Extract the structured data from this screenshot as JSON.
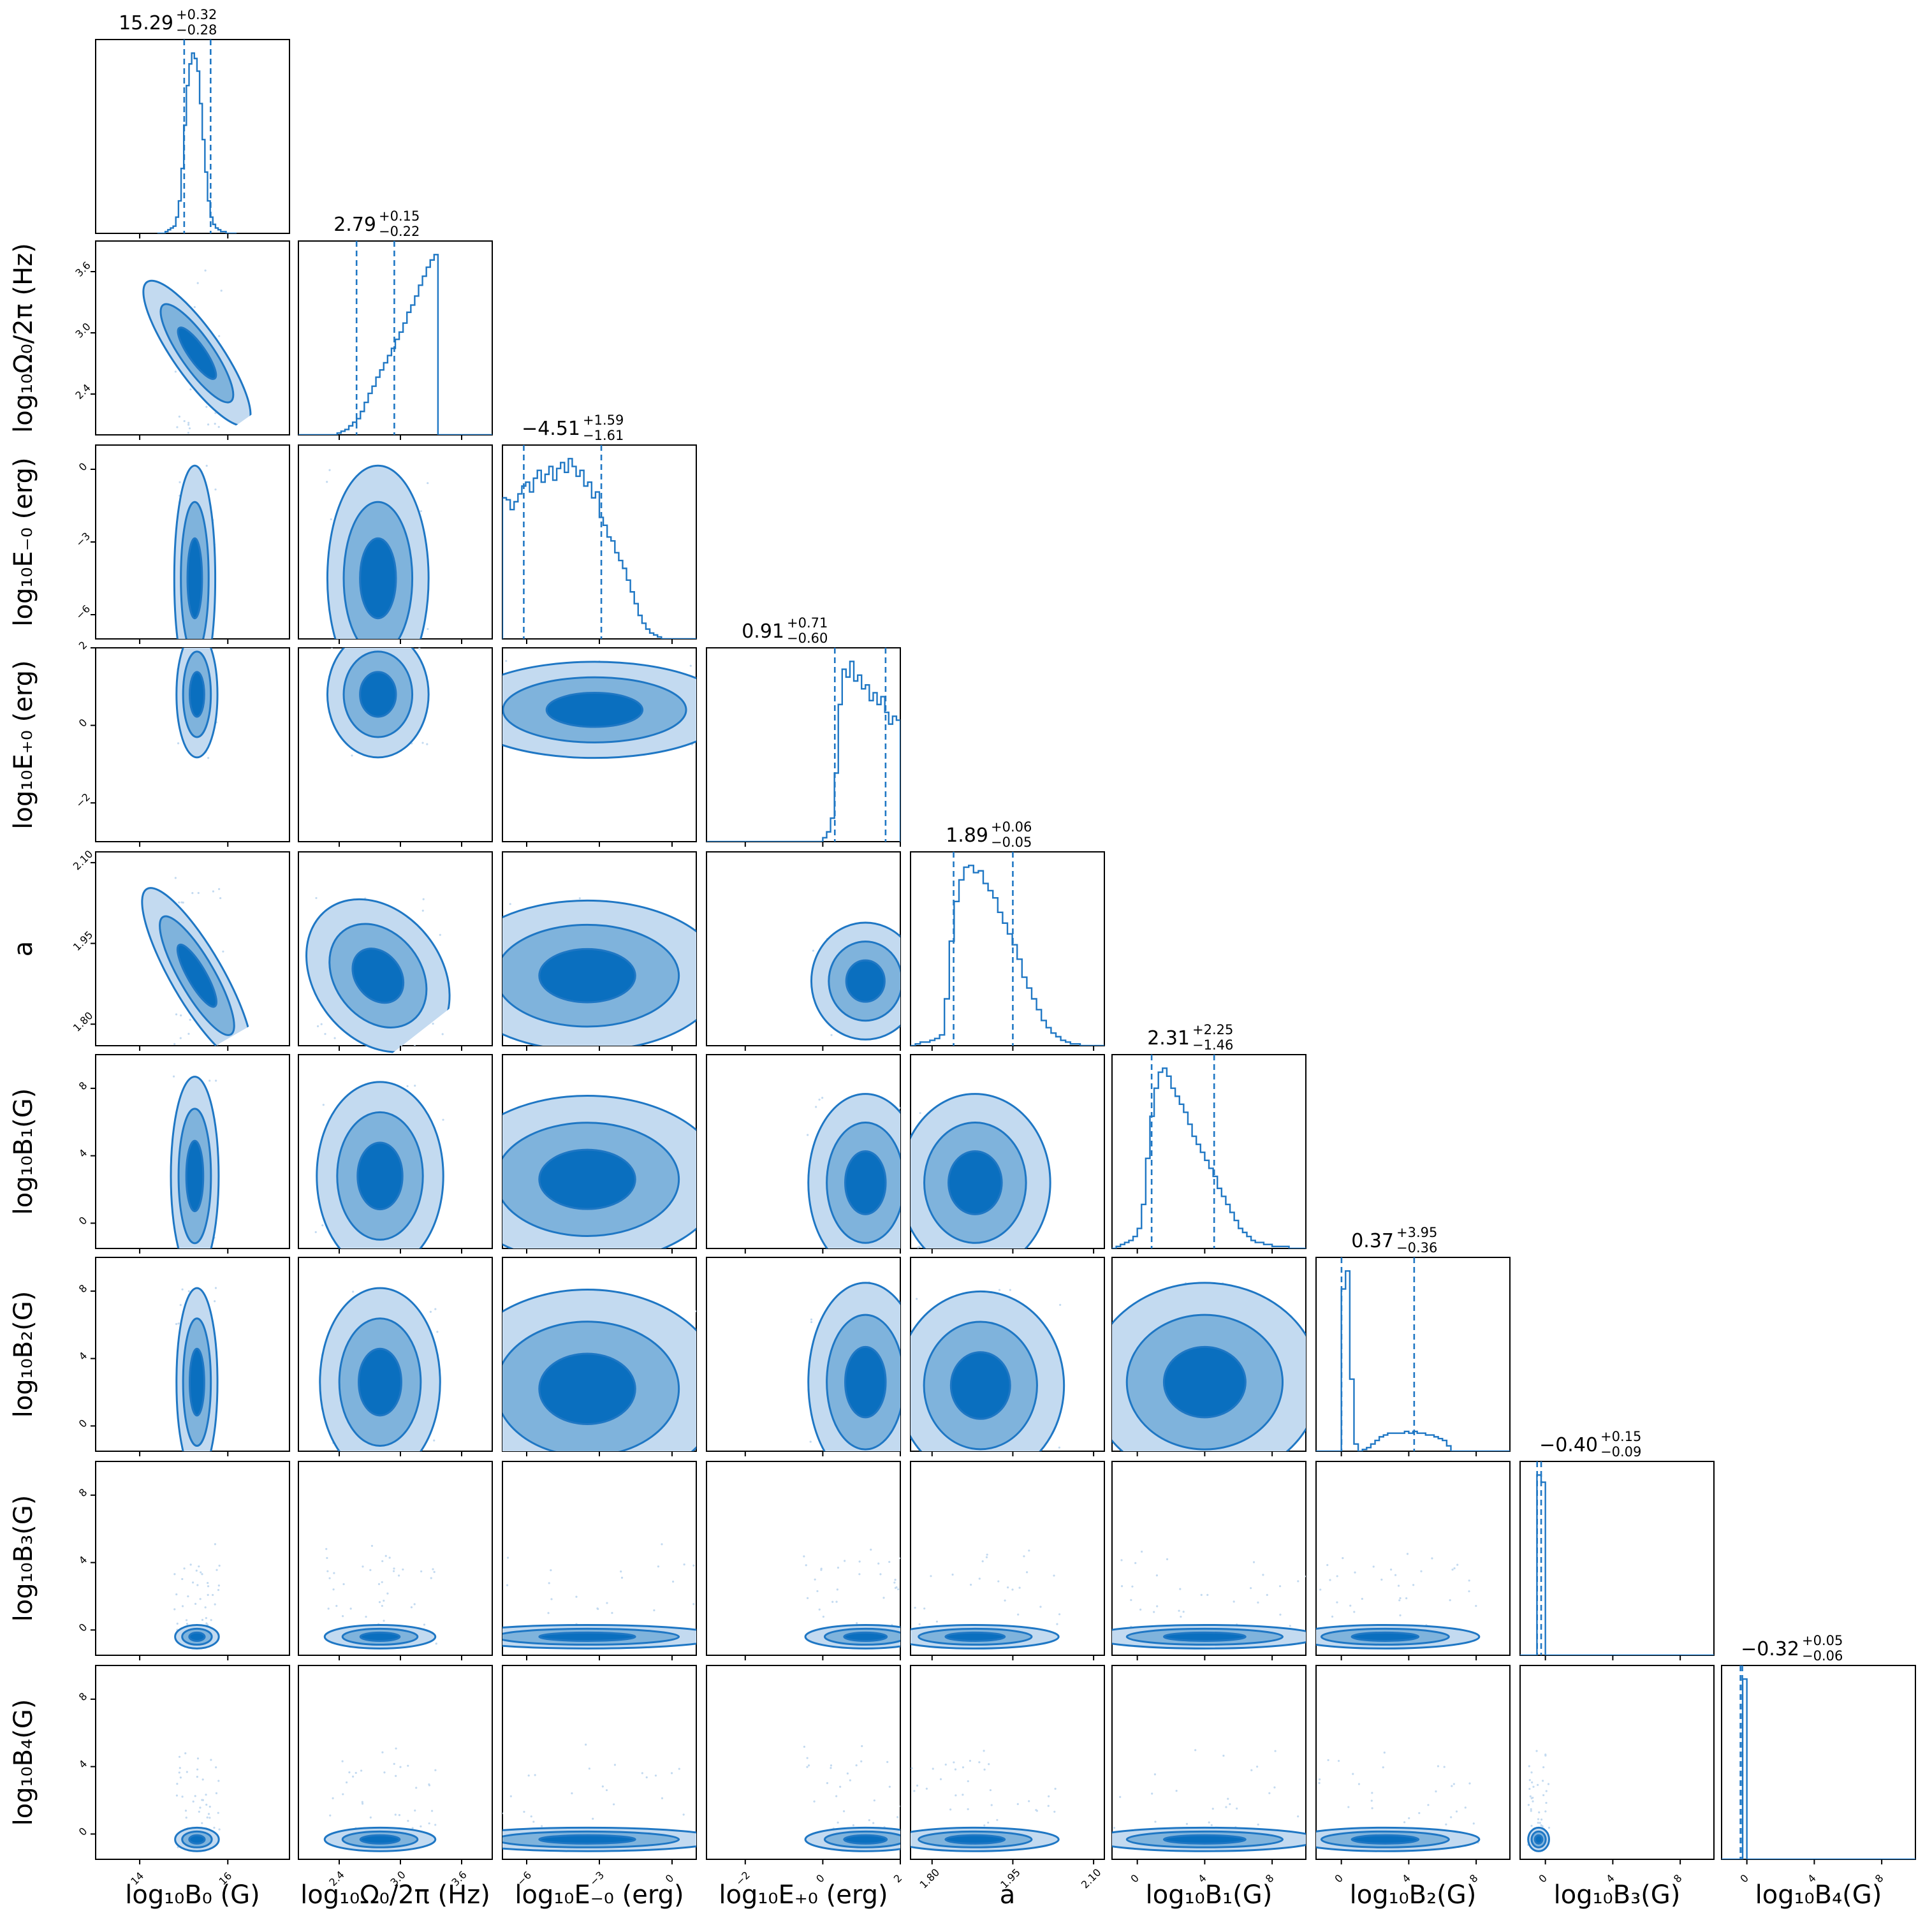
{
  "chart_data": {
    "type": "corner",
    "title": "",
    "parameters": [
      {
        "key": "B0",
        "ticks": [
          14,
          16
        ],
        "tick_labels": [
          "14",
          "16"
        ],
        "range": [
          13.0,
          17.4
        ]
      },
      {
        "key": "Omega0",
        "ticks": [
          2.4,
          3.0,
          3.6
        ],
        "tick_labels": [
          "2.4",
          "3.0",
          "3.6"
        ],
        "range": [
          2.0,
          3.9
        ]
      },
      {
        "key": "Em0",
        "ticks": [
          -6,
          -3,
          0
        ],
        "tick_labels": [
          "−6",
          "−3",
          "0"
        ],
        "range": [
          -7.0,
          1.0
        ]
      },
      {
        "key": "Ep0",
        "ticks": [
          -2,
          0,
          2
        ],
        "tick_labels": [
          "−2",
          "0",
          "2"
        ],
        "range": [
          -3.0,
          2.0
        ]
      },
      {
        "key": "a",
        "ticks": [
          1.8,
          1.95,
          2.1
        ],
        "tick_labels": [
          "1.80",
          "1.95",
          "2.10"
        ],
        "range": [
          1.76,
          2.12
        ]
      },
      {
        "key": "B1",
        "ticks": [
          0,
          4,
          8
        ],
        "tick_labels": [
          "0",
          "4",
          "8"
        ],
        "range": [
          -1.5,
          10.0
        ]
      },
      {
        "key": "B2",
        "ticks": [
          0,
          4,
          8
        ],
        "tick_labels": [
          "0",
          "4",
          "8"
        ],
        "range": [
          -1.5,
          10.0
        ]
      },
      {
        "key": "B3",
        "ticks": [
          0,
          4,
          8
        ],
        "tick_labels": [
          "0",
          "4",
          "8"
        ],
        "range": [
          -1.5,
          10.0
        ]
      },
      {
        "key": "B4",
        "ticks": [
          0,
          4,
          8
        ],
        "tick_labels": [
          "0",
          "4",
          "8"
        ],
        "range": [
          -1.5,
          10.0
        ]
      }
    ],
    "axis_labels": {
      "B0": {
        "x": "log₁₀B₀ (G)",
        "y": ""
      },
      "Omega0": {
        "x": "log₁₀Ω₀/2π (Hz)",
        "y": "log₁₀Ω₀/2π (Hz)"
      },
      "Em0": {
        "x": "log₁₀E₋₀ (erg)",
        "y": "log₁₀E₋₀ (erg)"
      },
      "Ep0": {
        "x": "log₁₀E₊₀ (erg)",
        "y": "log₁₀E₊₀ (erg)"
      },
      "a": {
        "x": "a",
        "y": "a"
      },
      "B1": {
        "x": "log₁₀B₁(G)",
        "y": "log₁₀B₁(G)"
      },
      "B2": {
        "x": "log₁₀B₂(G)",
        "y": "log₁₀B₂(G)"
      },
      "B3": {
        "x": "log₁₀B₃(G)",
        "y": "log₁₀B₃(G)"
      },
      "B4": {
        "x": "log₁₀B₄(G)",
        "y": "log₁₀B₄(G)"
      }
    },
    "marginal_titles": [
      {
        "median": "15.29",
        "plus": "+0.32",
        "minus": "−0.28"
      },
      {
        "median": "2.79",
        "plus": "+0.15",
        "minus": "−0.22"
      },
      {
        "median": "−4.51",
        "plus": "+1.59",
        "minus": "−1.61"
      },
      {
        "median": "0.91",
        "plus": "+0.71",
        "minus": "−0.60"
      },
      {
        "median": "1.89",
        "plus": "+0.06",
        "minus": "−0.05"
      },
      {
        "median": "2.31",
        "plus": "+2.25",
        "minus": "−1.46"
      },
      {
        "median": "0.37",
        "plus": "+3.95",
        "minus": "−0.36"
      },
      {
        "median": "−0.40",
        "plus": "+0.15",
        "minus": "−0.09"
      },
      {
        "median": "−0.32",
        "plus": "+0.05",
        "minus": "−0.06"
      }
    ],
    "quantiles": [
      [
        15.01,
        15.61
      ],
      [
        2.57,
        2.94
      ],
      [
        -6.12,
        -2.92
      ],
      [
        0.31,
        1.62
      ],
      [
        1.84,
        1.95
      ],
      [
        0.85,
        4.56
      ],
      [
        0.01,
        4.32
      ],
      [
        -0.49,
        -0.25
      ],
      [
        -0.38,
        -0.27
      ]
    ],
    "marginals": [
      {
        "bins": [
          14.4,
          16.2
        ],
        "values": [
          0,
          0,
          0,
          1,
          2,
          3,
          4,
          9,
          18,
          36,
          60,
          82,
          94,
          100,
          97,
          90,
          72,
          52,
          34,
          18,
          9,
          5,
          3,
          2,
          1,
          1,
          0,
          0,
          0,
          0
        ]
      },
      {
        "bins": [
          2.0,
          3.9
        ],
        "values": [
          0,
          0,
          0,
          0,
          0,
          0,
          0,
          0,
          0,
          0,
          1,
          2,
          3,
          5,
          7,
          9,
          13,
          18,
          23,
          27,
          32,
          36,
          40,
          44,
          48,
          53,
          57,
          62,
          68,
          72,
          77,
          83,
          88,
          93,
          97,
          100,
          0,
          0,
          0,
          0,
          0,
          0,
          0,
          0,
          0,
          0,
          0,
          0,
          0,
          0
        ]
      },
      {
        "bins": [
          -7.0,
          1.0
        ],
        "values": [
          72,
          71,
          66,
          70,
          74,
          78,
          80,
          75,
          82,
          86,
          80,
          84,
          88,
          81,
          87,
          90,
          85,
          92,
          88,
          83,
          86,
          78,
          80,
          72,
          75,
          62,
          58,
          52,
          50,
          44,
          40,
          36,
          30,
          24,
          18,
          12,
          8,
          5,
          3,
          2,
          1,
          0,
          0,
          0,
          0,
          0,
          0,
          0,
          0,
          0
        ]
      },
      {
        "bins": [
          -3.0,
          2.0
        ],
        "values": [
          0,
          0,
          0,
          0,
          0,
          0,
          0,
          0,
          0,
          0,
          0,
          0,
          0,
          0,
          0,
          0,
          0,
          0,
          0,
          0,
          0,
          0,
          0,
          0,
          0,
          0,
          0,
          0,
          0,
          0,
          2,
          5,
          12,
          35,
          70,
          88,
          84,
          92,
          82,
          85,
          78,
          80,
          72,
          76,
          70,
          74,
          66,
          60,
          64,
          62
        ]
      },
      {
        "bins": [
          1.76,
          2.12
        ],
        "values": [
          0,
          1,
          2,
          2,
          3,
          4,
          6,
          26,
          58,
          80,
          92,
          99,
          100,
          96,
          97,
          90,
          86,
          82,
          74,
          68,
          62,
          56,
          48,
          38,
          32,
          26,
          20,
          14,
          10,
          7,
          5,
          3,
          2,
          1,
          1,
          0,
          0,
          0,
          0,
          0
        ]
      },
      {
        "bins": [
          -1.5,
          10.0
        ],
        "values": [
          0,
          1,
          2,
          3,
          4,
          6,
          10,
          22,
          45,
          66,
          80,
          88,
          90,
          86,
          80,
          76,
          72,
          68,
          62,
          56,
          52,
          48,
          44,
          40,
          36,
          30,
          26,
          22,
          18,
          14,
          10,
          8,
          6,
          4,
          3,
          3,
          2,
          2,
          1,
          1,
          1,
          1,
          0,
          0,
          0,
          0
        ]
      },
      {
        "bins": [
          -1.5,
          10.0
        ],
        "values": [
          0,
          0,
          0,
          0,
          0,
          0,
          90,
          100,
          40,
          4,
          0,
          1,
          2,
          4,
          6,
          8,
          9,
          10,
          10,
          10,
          10,
          11,
          10,
          11,
          10,
          10,
          9,
          9,
          8,
          7,
          6,
          3,
          0,
          0,
          0,
          0,
          0,
          0,
          0,
          0,
          0,
          0,
          0,
          0,
          0,
          0
        ]
      },
      {
        "bins": [
          -1.5,
          10.0
        ],
        "values": [
          0,
          0,
          0,
          0,
          100,
          96,
          0,
          0,
          0,
          0,
          0,
          0,
          0,
          0,
          0,
          0,
          0,
          0,
          0,
          0,
          0,
          0,
          0,
          0,
          0,
          0,
          0,
          0,
          0,
          0,
          0,
          0,
          0,
          0,
          0,
          0,
          0,
          0,
          0,
          0,
          0,
          0,
          0,
          0,
          0,
          0
        ]
      },
      {
        "bins": [
          -1.5,
          10.0
        ],
        "values": [
          0,
          0,
          0,
          0,
          0,
          100,
          0,
          0,
          0,
          0,
          0,
          0,
          0,
          0,
          0,
          0,
          0,
          0,
          0,
          0,
          0,
          0,
          0,
          0,
          0,
          0,
          0,
          0,
          0,
          0,
          0,
          0,
          0,
          0,
          0,
          0,
          0,
          0,
          0,
          0,
          0,
          0,
          0,
          0,
          0,
          0
        ]
      }
    ],
    "colors": {
      "line": "#1f77c4",
      "dark": "#0a6fbf",
      "mid": "#7fb3dc",
      "light": "#c3daf0",
      "tick": "#000000",
      "frame": "#000000"
    }
  }
}
